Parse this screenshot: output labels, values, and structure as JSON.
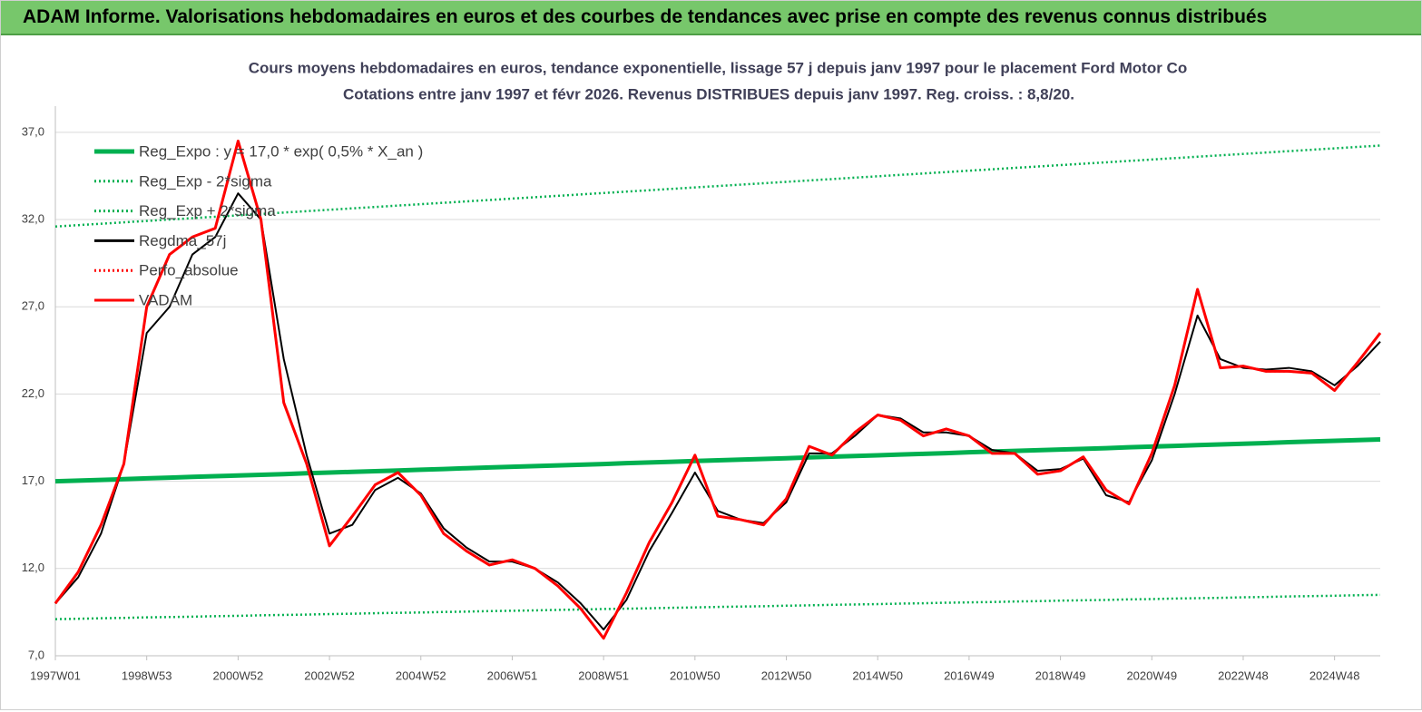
{
  "header": {
    "title": "ADAM Informe. Valorisations hebdomadaires en euros et des courbes de tendances avec prise en compte des revenus connus distribués"
  },
  "chart_data": {
    "type": "line",
    "title": "Cours moyens hebdomadaires en euros, tendance exponentielle, lissage 57 j depuis janv 1997 pour le placement Ford Motor Co",
    "subtitle": "Cotations entre janv 1997 et févr 2026. Revenus DISTRIBUES depuis janv 1997. Reg. croiss. : 8,8/20.",
    "categories": [
      "1997W01",
      null,
      null,
      null,
      "1998W53",
      null,
      null,
      null,
      "2000W52",
      null,
      null,
      null,
      "2002W52",
      null,
      null,
      null,
      "2004W52",
      null,
      null,
      null,
      "2006W51",
      null,
      null,
      null,
      "2008W51",
      null,
      null,
      null,
      "2010W50",
      null,
      null,
      null,
      "2012W50",
      null,
      null,
      null,
      "2014W50",
      null,
      null,
      null,
      "2016W49",
      null,
      null,
      null,
      "2018W49",
      null,
      null,
      null,
      "2020W49",
      null,
      null,
      null,
      "2022W48",
      null,
      null,
      null,
      "2024W48",
      null,
      null
    ],
    "ylim": [
      7,
      38.5
    ],
    "yticks": [
      {
        "value": 7,
        "label": "7,0"
      },
      {
        "value": 12,
        "label": "12,0"
      },
      {
        "value": 17,
        "label": "17,0"
      },
      {
        "value": 22,
        "label": "22,0"
      },
      {
        "value": 27,
        "label": "27,0"
      },
      {
        "value": 32,
        "label": "32,0"
      },
      {
        "value": 37,
        "label": "37,0"
      }
    ],
    "grid": true,
    "legend": "top-left",
    "series": [
      {
        "name": "Reg_Expo : y = 17,0 * exp( 0,5% *  X_an )",
        "color": "#00b050",
        "dash": "solid",
        "values": [
          17.0,
          17.04,
          17.08,
          17.12,
          17.17,
          17.21,
          17.25,
          17.29,
          17.33,
          17.37,
          17.41,
          17.46,
          17.5,
          17.54,
          17.58,
          17.62,
          17.66,
          17.7,
          17.75,
          17.79,
          17.83,
          17.87,
          17.91,
          17.95,
          17.99,
          18.04,
          18.08,
          18.12,
          18.16,
          18.2,
          18.24,
          18.28,
          18.32,
          18.37,
          18.41,
          18.45,
          18.49,
          18.53,
          18.57,
          18.61,
          18.66,
          18.7,
          18.74,
          18.78,
          18.82,
          18.86,
          18.9,
          18.95,
          18.99,
          19.03,
          19.07,
          19.11,
          19.15,
          19.19,
          19.24,
          19.28,
          19.32,
          19.36,
          19.4
        ]
      },
      {
        "name": "Reg_Exp - 2*sigma",
        "color": "#00b050",
        "dash": "dotted",
        "values": [
          9.1,
          9.12,
          9.15,
          9.17,
          9.2,
          9.22,
          9.24,
          9.27,
          9.29,
          9.32,
          9.34,
          9.36,
          9.39,
          9.41,
          9.44,
          9.46,
          9.48,
          9.51,
          9.53,
          9.56,
          9.58,
          9.6,
          9.63,
          9.65,
          9.68,
          9.7,
          9.72,
          9.75,
          9.77,
          9.8,
          9.82,
          9.84,
          9.87,
          9.89,
          9.92,
          9.94,
          9.96,
          9.99,
          10.01,
          10.04,
          10.06,
          10.08,
          10.11,
          10.13,
          10.16,
          10.18,
          10.2,
          10.23,
          10.25,
          10.28,
          10.3,
          10.32,
          10.35,
          10.37,
          10.4,
          10.42,
          10.44,
          10.47,
          10.49
        ]
      },
      {
        "name": "Reg_Exp + 2*sigma",
        "color": "#00b050",
        "dash": "dotted",
        "values": [
          31.6,
          31.68,
          31.76,
          31.84,
          31.92,
          32.0,
          32.08,
          32.16,
          32.24,
          32.32,
          32.4,
          32.48,
          32.56,
          32.64,
          32.72,
          32.8,
          32.88,
          32.96,
          33.04,
          33.12,
          33.2,
          33.28,
          33.36,
          33.44,
          33.52,
          33.6,
          33.68,
          33.76,
          33.84,
          33.92,
          34.0,
          34.08,
          34.16,
          34.24,
          34.32,
          34.4,
          34.48,
          34.56,
          34.64,
          34.72,
          34.8,
          34.88,
          34.96,
          35.04,
          35.12,
          35.2,
          35.28,
          35.36,
          35.44,
          35.52,
          35.6,
          35.68,
          35.76,
          35.84,
          35.92,
          36.0,
          36.08,
          36.16,
          36.24
        ]
      },
      {
        "name": "Regdma_57j",
        "color": "#000000",
        "dash": "solid",
        "values": [
          10,
          11.5,
          14,
          18,
          25.5,
          27,
          30,
          31,
          33.5,
          32,
          24,
          18.5,
          14,
          14.5,
          16.5,
          17.2,
          16.3,
          14.3,
          13.2,
          12.4,
          12.4,
          12,
          11.2,
          10,
          8.5,
          10.2,
          13,
          15.2,
          17.5,
          15.3,
          14.8,
          14.6,
          15.8,
          18.6,
          18.6,
          19.6,
          20.8,
          20.6,
          19.8,
          19.8,
          19.6,
          18.8,
          18.6,
          17.6,
          17.7,
          18.3,
          16.2,
          15.8,
          18.2,
          22,
          26.5,
          24,
          23.5,
          23.4,
          23.5,
          23.3,
          22.5,
          23.6,
          25
        ]
      },
      {
        "name": "Perfo_absolue",
        "color": "#ff0000",
        "dash": "dotted",
        "values": [
          10,
          11.8,
          14.5,
          18,
          27,
          30,
          31,
          31.5,
          36.5,
          32,
          21.5,
          18,
          13.3,
          15,
          16.8,
          17.5,
          16.2,
          14,
          13,
          12.2,
          12.5,
          12,
          11,
          9.7,
          8,
          10.6,
          13.5,
          15.8,
          18.5,
          15,
          14.8,
          14.5,
          16,
          19,
          18.5,
          19.8,
          20.8,
          20.5,
          19.6,
          20,
          19.6,
          18.6,
          18.6,
          17.4,
          17.6,
          18.4,
          16.5,
          15.7,
          18.6,
          22.5,
          28,
          23.5,
          23.6,
          23.3,
          23.3,
          23.2,
          22.2,
          23.8,
          25.5
        ]
      },
      {
        "name": "VADAM",
        "color": "#ff0000",
        "dash": "solid",
        "values": [
          10,
          11.8,
          14.5,
          18,
          27,
          30,
          31,
          31.5,
          36.5,
          32,
          21.5,
          18,
          13.3,
          15,
          16.8,
          17.5,
          16.2,
          14,
          13,
          12.2,
          12.5,
          12,
          11,
          9.7,
          8,
          10.6,
          13.5,
          15.8,
          18.5,
          15,
          14.8,
          14.5,
          16,
          19,
          18.5,
          19.8,
          20.8,
          20.5,
          19.6,
          20,
          19.6,
          18.6,
          18.6,
          17.4,
          17.6,
          18.4,
          16.5,
          15.7,
          18.6,
          22.5,
          28,
          23.5,
          23.6,
          23.3,
          23.3,
          23.2,
          22.2,
          23.8,
          25.5
        ]
      }
    ]
  }
}
